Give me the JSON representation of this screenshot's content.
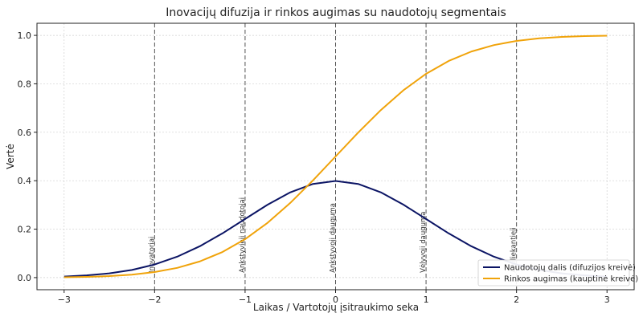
{
  "chart_data": {
    "type": "line",
    "title": "Inovacijų difuzija ir rinkos augimas su naudotojų segmentais",
    "xlabel": "Laikas / Vartotojų įsitraukimo seka",
    "ylabel": "Vertė",
    "xlim": [
      -3.3,
      3.3
    ],
    "ylim": [
      -0.05,
      1.05
    ],
    "xticks": [
      -3,
      -2,
      -1,
      0,
      1,
      2,
      3
    ],
    "xtick_labels": [
      "−3",
      "−2",
      "−1",
      "0",
      "1",
      "2",
      "3"
    ],
    "yticks": [
      0.0,
      0.2,
      0.4,
      0.6,
      0.8,
      1.0
    ],
    "ytick_labels": [
      "0.0",
      "0.2",
      "0.4",
      "0.6",
      "0.8",
      "1.0"
    ],
    "grid": true,
    "legend_position": "bottom-right",
    "segments": [
      {
        "x": -2,
        "label": "Inovatoriai"
      },
      {
        "x": -1,
        "label": "Ankstyvieji naudotojai"
      },
      {
        "x": 0,
        "label": "Ankstyvoji dauguma"
      },
      {
        "x": 1,
        "label": "Vėlyvoji dauguma"
      },
      {
        "x": 2,
        "label": "Atsiliekantieji"
      }
    ],
    "series": [
      {
        "name": "Naudotojų dalis (difuzijos kreivė)",
        "color": "#0b1464",
        "x": [
          -3,
          -2.75,
          -2.5,
          -2.25,
          -2,
          -1.75,
          -1.5,
          -1.25,
          -1,
          -0.75,
          -0.5,
          -0.25,
          0,
          0.25,
          0.5,
          0.75,
          1,
          1.25,
          1.5,
          1.75,
          2,
          2.25,
          2.5,
          2.75,
          3
        ],
        "y": [
          0.0044,
          0.0091,
          0.0175,
          0.0317,
          0.054,
          0.0863,
          0.1295,
          0.1826,
          0.242,
          0.3011,
          0.3521,
          0.3867,
          0.3989,
          0.3867,
          0.3521,
          0.3011,
          0.242,
          0.1826,
          0.1295,
          0.0863,
          0.054,
          0.0317,
          0.0175,
          0.0091,
          0.0044
        ]
      },
      {
        "name": "Rinkos augimas (kauptinė kreivė)",
        "color": "#f0a30a",
        "x": [
          -3,
          -2.75,
          -2.5,
          -2.25,
          -2,
          -1.75,
          -1.5,
          -1.25,
          -1,
          -0.75,
          -0.5,
          -0.25,
          0,
          0.25,
          0.5,
          0.75,
          1,
          1.25,
          1.5,
          1.75,
          2,
          2.25,
          2.5,
          2.75,
          3
        ],
        "y": [
          0.0013,
          0.003,
          0.0062,
          0.0122,
          0.0228,
          0.0401,
          0.0668,
          0.1056,
          0.1587,
          0.2266,
          0.3085,
          0.4013,
          0.5,
          0.5987,
          0.6915,
          0.7734,
          0.8413,
          0.8944,
          0.9332,
          0.9599,
          0.9772,
          0.9878,
          0.9938,
          0.997,
          0.9987
        ]
      }
    ]
  }
}
